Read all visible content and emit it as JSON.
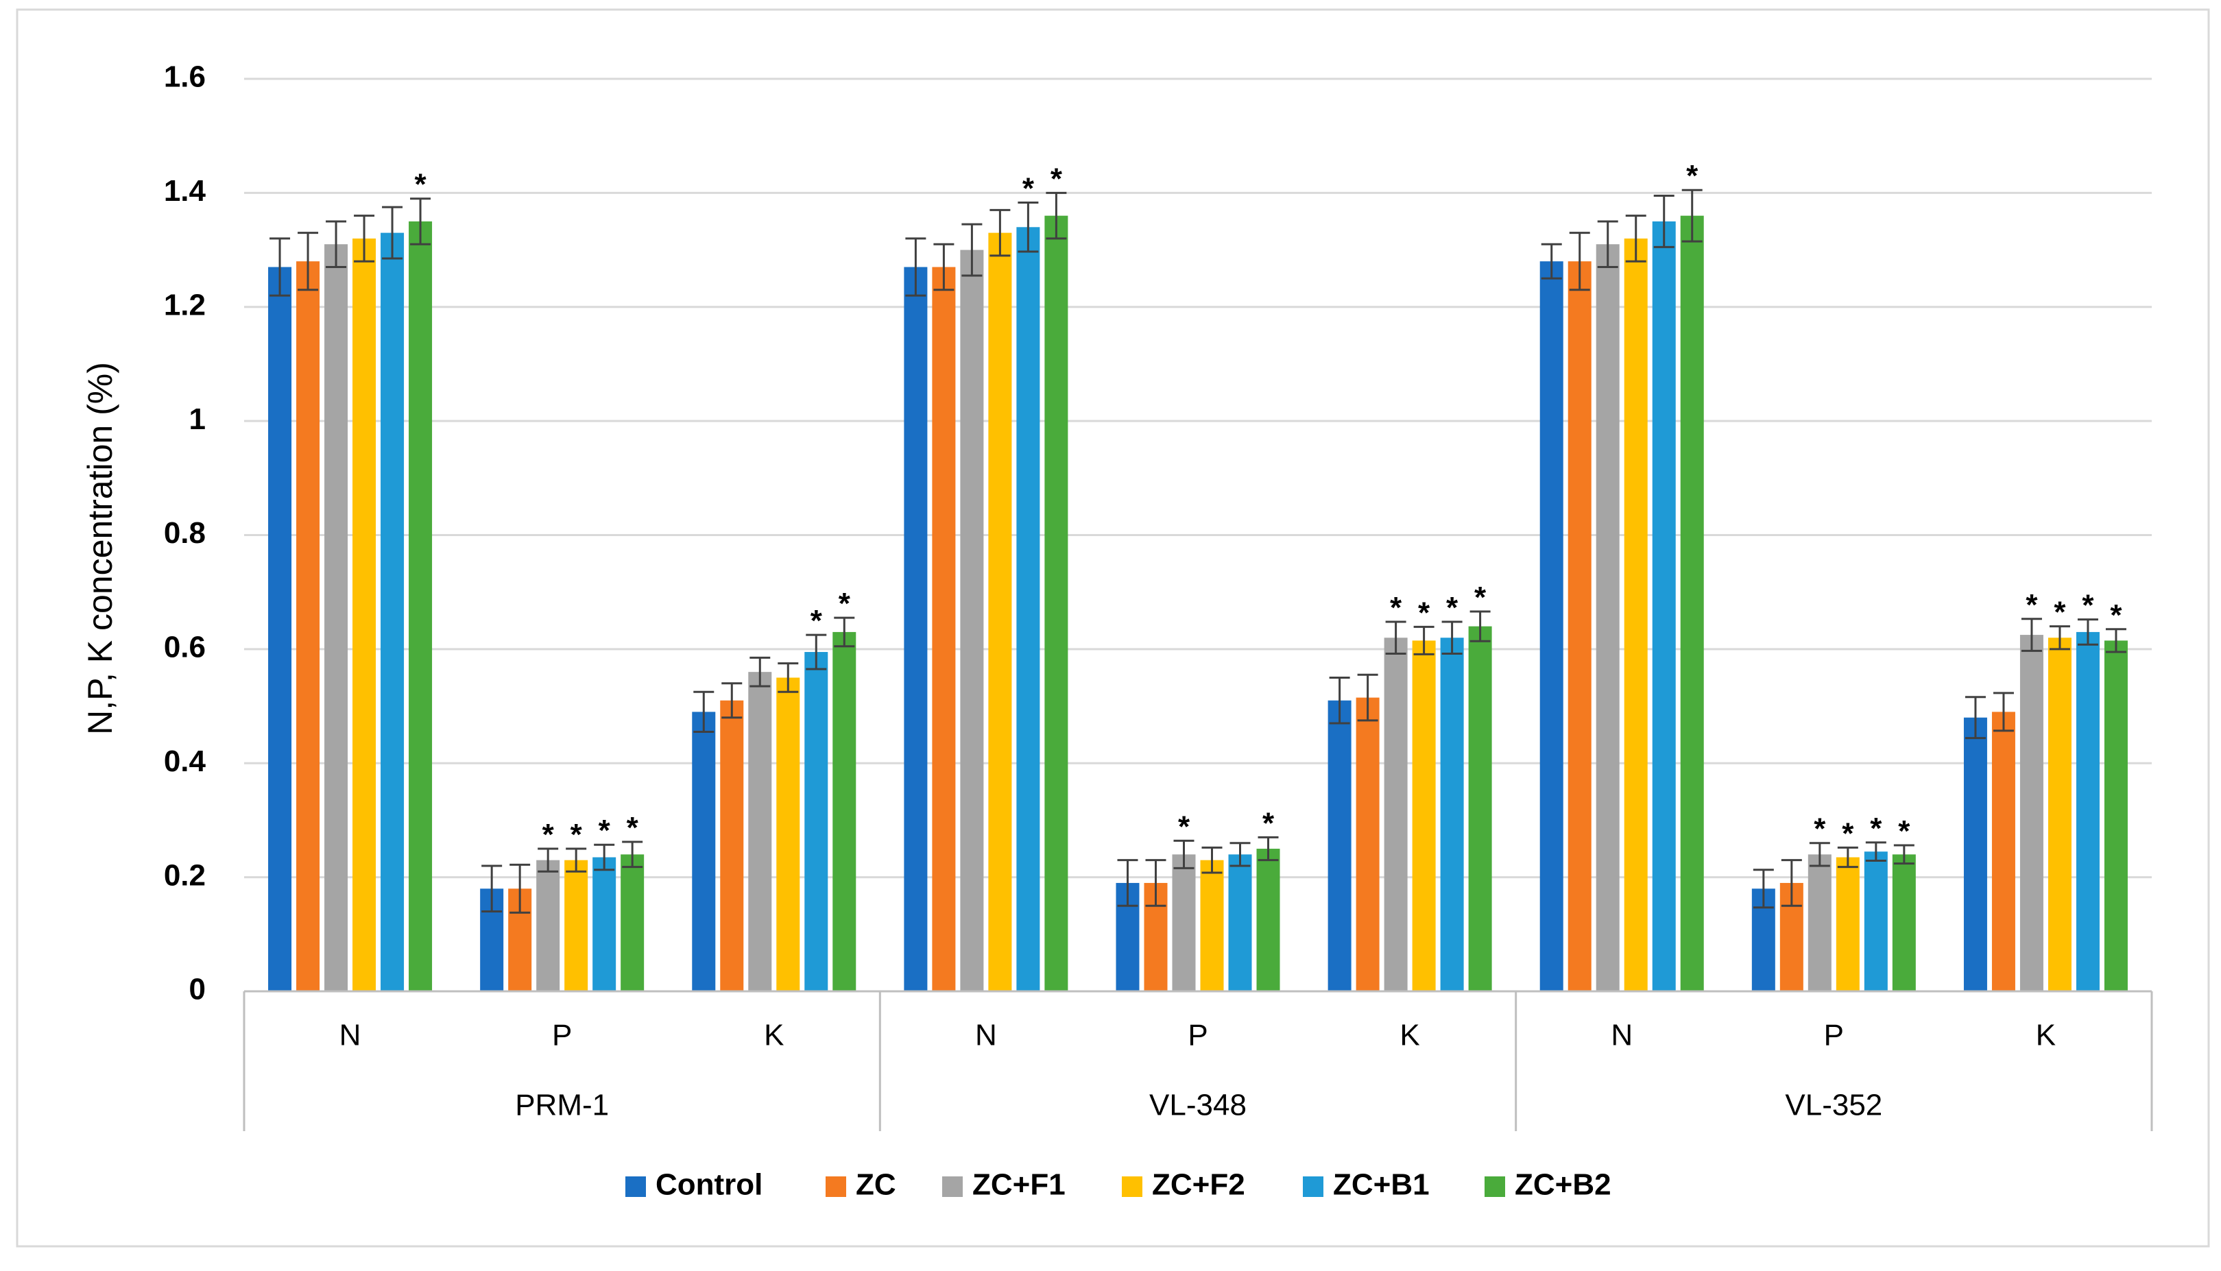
{
  "chart_data": {
    "type": "bar",
    "title": "",
    "xlabel": "",
    "ylabel": "N,P, K concentration (%)",
    "ylim": [
      0,
      1.6
    ],
    "yticks": [
      "0",
      "0.2",
      "0.4",
      "0.6",
      "0.8",
      "1",
      "1.2",
      "1.4",
      "1.6"
    ],
    "grid": true,
    "legend_position": "bottom",
    "groups": [
      {
        "name": "PRM-1",
        "subcategories": [
          "N",
          "P",
          "K"
        ]
      },
      {
        "name": "VL-348",
        "subcategories": [
          "N",
          "P",
          "K"
        ]
      },
      {
        "name": "VL-352",
        "subcategories": [
          "N",
          "P",
          "K"
        ]
      }
    ],
    "categories": [
      "PRM-1 N",
      "PRM-1 P",
      "PRM-1 K",
      "VL-348 N",
      "VL-348 P",
      "VL-348 K",
      "VL-352 N",
      "VL-352 P",
      "VL-352 K"
    ],
    "significance_marker": "*",
    "series": [
      {
        "name": "Control",
        "color": "#1a6fc4",
        "values": [
          1.27,
          0.18,
          0.49,
          1.27,
          0.19,
          0.51,
          1.28,
          0.18,
          0.48
        ],
        "errors": [
          0.05,
          0.04,
          0.035,
          0.05,
          0.04,
          0.04,
          0.03,
          0.033,
          0.036
        ],
        "significant": [
          false,
          false,
          false,
          false,
          false,
          false,
          false,
          false,
          false
        ]
      },
      {
        "name": "ZC",
        "color": "#f47a20",
        "values": [
          1.28,
          0.18,
          0.51,
          1.27,
          0.19,
          0.515,
          1.28,
          0.19,
          0.49
        ],
        "errors": [
          0.05,
          0.042,
          0.03,
          0.04,
          0.04,
          0.04,
          0.05,
          0.04,
          0.033
        ],
        "significant": [
          false,
          false,
          false,
          false,
          false,
          false,
          false,
          false,
          false
        ]
      },
      {
        "name": "ZC+F1",
        "color": "#a5a5a5",
        "values": [
          1.31,
          0.23,
          0.56,
          1.3,
          0.24,
          0.62,
          1.31,
          0.24,
          0.625
        ],
        "errors": [
          0.04,
          0.02,
          0.025,
          0.045,
          0.024,
          0.028,
          0.04,
          0.02,
          0.028
        ],
        "significant": [
          false,
          true,
          false,
          false,
          true,
          true,
          false,
          true,
          true
        ]
      },
      {
        "name": "ZC+F2",
        "color": "#ffc000",
        "values": [
          1.32,
          0.23,
          0.55,
          1.33,
          0.23,
          0.615,
          1.32,
          0.235,
          0.62
        ],
        "errors": [
          0.04,
          0.02,
          0.025,
          0.04,
          0.022,
          0.024,
          0.04,
          0.017,
          0.02
        ],
        "significant": [
          false,
          true,
          false,
          false,
          false,
          true,
          false,
          true,
          true
        ]
      },
      {
        "name": "ZC+B1",
        "color": "#1f9ad6",
        "values": [
          1.33,
          0.235,
          0.595,
          1.34,
          0.24,
          0.62,
          1.35,
          0.245,
          0.63
        ],
        "errors": [
          0.045,
          0.022,
          0.03,
          0.043,
          0.02,
          0.028,
          0.045,
          0.016,
          0.022
        ],
        "significant": [
          false,
          true,
          true,
          true,
          false,
          true,
          false,
          true,
          true
        ]
      },
      {
        "name": "ZC+B2",
        "color": "#4aab3b",
        "values": [
          1.35,
          0.24,
          0.63,
          1.36,
          0.25,
          0.64,
          1.36,
          0.24,
          0.615
        ],
        "errors": [
          0.04,
          0.022,
          0.025,
          0.04,
          0.02,
          0.026,
          0.045,
          0.016,
          0.02
        ],
        "significant": [
          true,
          true,
          true,
          true,
          true,
          true,
          true,
          true,
          true
        ]
      }
    ]
  }
}
